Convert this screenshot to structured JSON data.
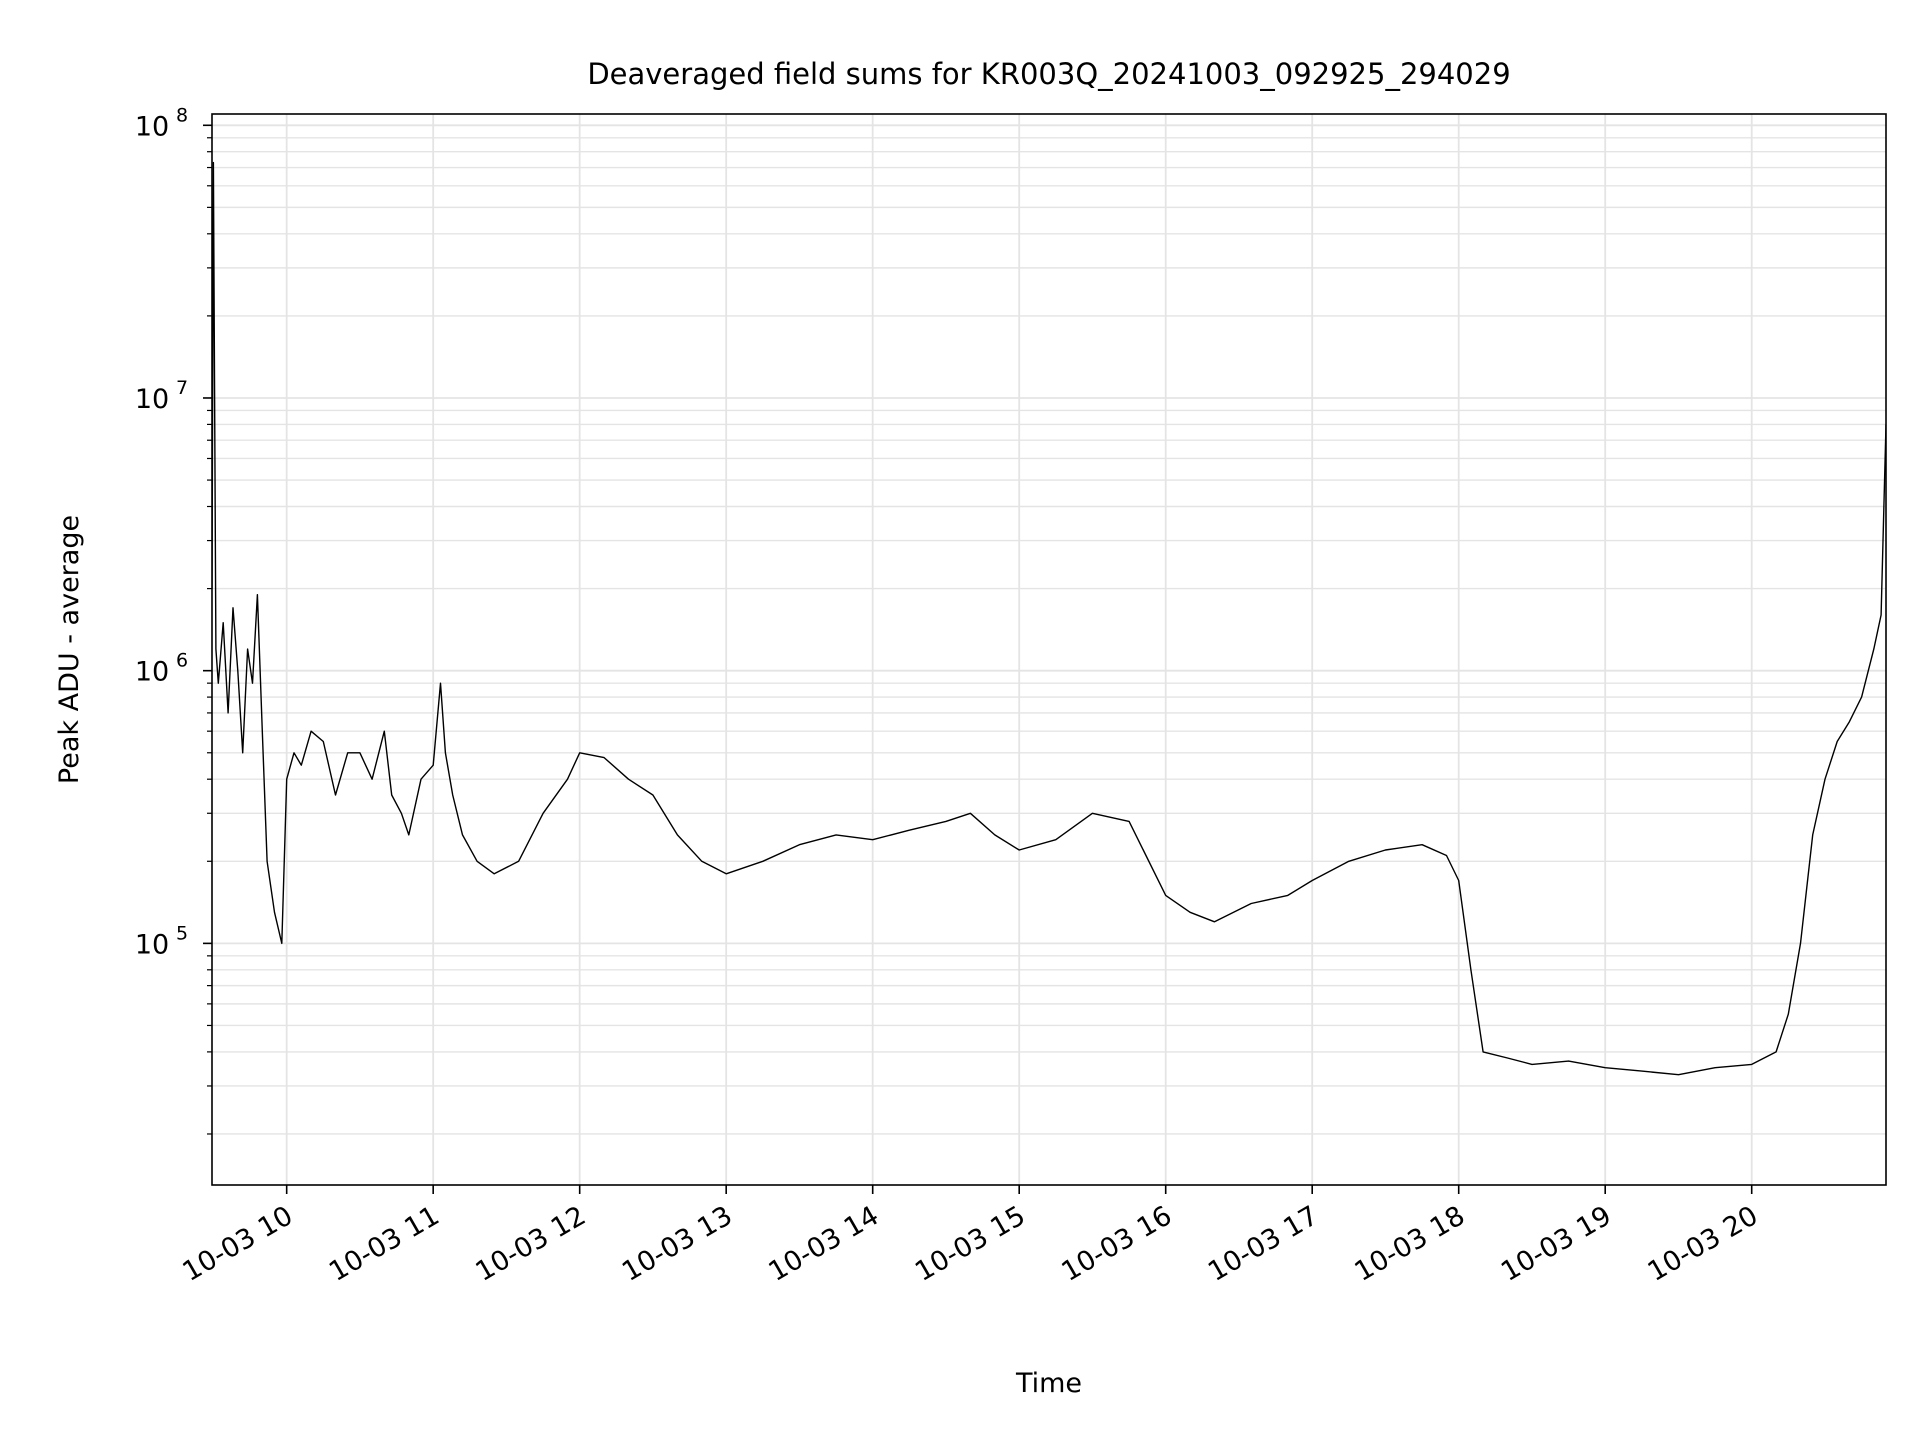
{
  "chart_data": {
    "type": "line",
    "title": "Deaveraged field sums for KR003Q_20241003_092925_294029",
    "xlabel": "Time",
    "ylabel": "Peak ADU - average",
    "yscale": "log",
    "ylim": [
      13000,
      110000000
    ],
    "xlim": [
      "2024-10-03 09:29:25",
      "2024-10-03 20:55:00"
    ],
    "grid": true,
    "line_color": "#000000",
    "grid_color": "#e4e4e4",
    "y_ticks": [
      {
        "value": 100000,
        "base": "10",
        "exp": "5"
      },
      {
        "value": 1000000,
        "base": "10",
        "exp": "6"
      },
      {
        "value": 10000000,
        "base": "10",
        "exp": "7"
      },
      {
        "value": 100000000,
        "base": "10",
        "exp": "8"
      }
    ],
    "x_ticks": [
      {
        "time": "2024-10-03 10:00",
        "label": "10-03 10"
      },
      {
        "time": "2024-10-03 11:00",
        "label": "10-03 11"
      },
      {
        "time": "2024-10-03 12:00",
        "label": "10-03 12"
      },
      {
        "time": "2024-10-03 13:00",
        "label": "10-03 13"
      },
      {
        "time": "2024-10-03 14:00",
        "label": "10-03 14"
      },
      {
        "time": "2024-10-03 15:00",
        "label": "10-03 15"
      },
      {
        "time": "2024-10-03 16:00",
        "label": "10-03 16"
      },
      {
        "time": "2024-10-03 17:00",
        "label": "10-03 17"
      },
      {
        "time": "2024-10-03 18:00",
        "label": "10-03 18"
      },
      {
        "time": "2024-10-03 19:00",
        "label": "10-03 19"
      },
      {
        "time": "2024-10-03 20:00",
        "label": "10-03 20"
      }
    ],
    "series": [
      {
        "x": [
          "2024-10-03 09:29:25",
          "2024-10-03 09:30:00",
          "2024-10-03 09:31:00",
          "2024-10-03 09:32:00",
          "2024-10-03 09:34:00",
          "2024-10-03 09:36:00",
          "2024-10-03 09:38:00",
          "2024-10-03 09:40:00",
          "2024-10-03 09:42:00",
          "2024-10-03 09:44:00",
          "2024-10-03 09:46:00",
          "2024-10-03 09:48:00",
          "2024-10-03 09:50:00",
          "2024-10-03 09:52:00",
          "2024-10-03 09:55:00",
          "2024-10-03 09:58:00",
          "2024-10-03 10:00:00",
          "2024-10-03 10:03:00",
          "2024-10-03 10:06:00",
          "2024-10-03 10:10:00",
          "2024-10-03 10:15:00",
          "2024-10-03 10:20:00",
          "2024-10-03 10:25:00",
          "2024-10-03 10:30:00",
          "2024-10-03 10:35:00",
          "2024-10-03 10:40:00",
          "2024-10-03 10:43:00",
          "2024-10-03 10:47:00",
          "2024-10-03 10:50:00",
          "2024-10-03 10:55:00",
          "2024-10-03 11:00:00",
          "2024-10-03 11:03:00",
          "2024-10-03 11:05:00",
          "2024-10-03 11:08:00",
          "2024-10-03 11:12:00",
          "2024-10-03 11:18:00",
          "2024-10-03 11:25:00",
          "2024-10-03 11:35:00",
          "2024-10-03 11:45:00",
          "2024-10-03 11:55:00",
          "2024-10-03 12:00:00",
          "2024-10-03 12:10:00",
          "2024-10-03 12:20:00",
          "2024-10-03 12:30:00",
          "2024-10-03 12:40:00",
          "2024-10-03 12:50:00",
          "2024-10-03 13:00:00",
          "2024-10-03 13:15:00",
          "2024-10-03 13:30:00",
          "2024-10-03 13:45:00",
          "2024-10-03 14:00:00",
          "2024-10-03 14:15:00",
          "2024-10-03 14:30:00",
          "2024-10-03 14:40:00",
          "2024-10-03 14:50:00",
          "2024-10-03 15:00:00",
          "2024-10-03 15:15:00",
          "2024-10-03 15:30:00",
          "2024-10-03 15:45:00",
          "2024-10-03 16:00:00",
          "2024-10-03 16:10:00",
          "2024-10-03 16:20:00",
          "2024-10-03 16:35:00",
          "2024-10-03 16:50:00",
          "2024-10-03 17:00:00",
          "2024-10-03 17:15:00",
          "2024-10-03 17:30:00",
          "2024-10-03 17:45:00",
          "2024-10-03 17:55:00",
          "2024-10-03 18:00:00",
          "2024-10-03 18:05:00",
          "2024-10-03 18:10:00",
          "2024-10-03 18:20:00",
          "2024-10-03 18:30:00",
          "2024-10-03 18:45:00",
          "2024-10-03 19:00:00",
          "2024-10-03 19:15:00",
          "2024-10-03 19:30:00",
          "2024-10-03 19:45:00",
          "2024-10-03 20:00:00",
          "2024-10-03 20:10:00",
          "2024-10-03 20:15:00",
          "2024-10-03 20:20:00",
          "2024-10-03 20:25:00",
          "2024-10-03 20:30:00",
          "2024-10-03 20:35:00",
          "2024-10-03 20:40:00",
          "2024-10-03 20:45:00",
          "2024-10-03 20:50:00",
          "2024-10-03 20:53:00",
          "2024-10-03 20:55:00"
        ],
        "y": [
          2000000,
          73000000,
          1200000,
          900000,
          1500000,
          700000,
          1700000,
          1000000,
          500000,
          1200000,
          900000,
          1900000,
          600000,
          200000,
          130000,
          100000,
          400000,
          500000,
          450000,
          600000,
          550000,
          350000,
          500000,
          500000,
          400000,
          600000,
          350000,
          300000,
          250000,
          400000,
          450000,
          900000,
          500000,
          350000,
          250000,
          200000,
          180000,
          200000,
          300000,
          400000,
          500000,
          480000,
          400000,
          350000,
          250000,
          200000,
          180000,
          200000,
          230000,
          250000,
          240000,
          260000,
          280000,
          300000,
          250000,
          220000,
          240000,
          300000,
          280000,
          150000,
          130000,
          120000,
          140000,
          150000,
          170000,
          200000,
          220000,
          230000,
          210000,
          170000,
          80000,
          40000,
          38000,
          36000,
          37000,
          35000,
          34000,
          33000,
          35000,
          36000,
          40000,
          55000,
          100000,
          250000,
          400000,
          550000,
          650000,
          800000,
          1200000,
          1600000,
          8000000
        ]
      }
    ]
  }
}
